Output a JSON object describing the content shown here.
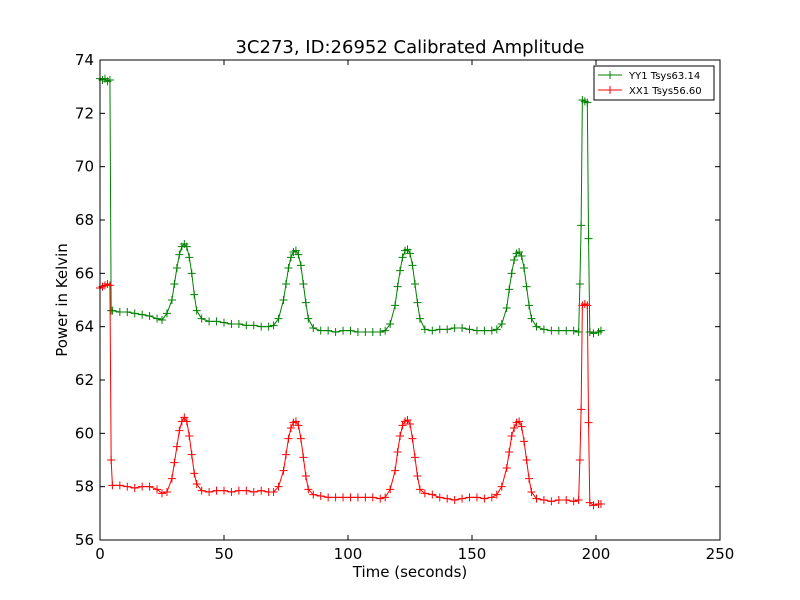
{
  "chart_data": {
    "type": "line",
    "title": "3C273, ID:26952 Calibrated Amplitude",
    "xlabel": "Time (seconds)",
    "ylabel": "Power in Kelvin",
    "xlim": [
      0,
      250
    ],
    "ylim": [
      56,
      74
    ],
    "xticks": [
      0,
      50,
      100,
      150,
      200,
      250
    ],
    "yticks": [
      56,
      58,
      60,
      62,
      64,
      66,
      68,
      70,
      72,
      74
    ],
    "grid": false,
    "legend_position": "top-right",
    "marker": "plus",
    "series": [
      {
        "name": "YY1 Tsys63.14",
        "color": "#008000",
        "points": [
          [
            0,
            73.3
          ],
          [
            1,
            73.25
          ],
          [
            2,
            73.3
          ],
          [
            3,
            73.2
          ],
          [
            4,
            73.25
          ],
          [
            4.5,
            64.6
          ],
          [
            5,
            64.6
          ],
          [
            8,
            64.55
          ],
          [
            11,
            64.55
          ],
          [
            14,
            64.5
          ],
          [
            17,
            64.45
          ],
          [
            20,
            64.4
          ],
          [
            23,
            64.3
          ],
          [
            25,
            64.25
          ],
          [
            27,
            64.5
          ],
          [
            29,
            65.0
          ],
          [
            30,
            65.6
          ],
          [
            31,
            66.2
          ],
          [
            32,
            66.7
          ],
          [
            33,
            67.0
          ],
          [
            34,
            67.1
          ],
          [
            35,
            67.0
          ],
          [
            36,
            66.6
          ],
          [
            37,
            66.0
          ],
          [
            38,
            65.2
          ],
          [
            39,
            64.6
          ],
          [
            41,
            64.3
          ],
          [
            44,
            64.2
          ],
          [
            47,
            64.2
          ],
          [
            50,
            64.15
          ],
          [
            53,
            64.1
          ],
          [
            56,
            64.1
          ],
          [
            59,
            64.05
          ],
          [
            62,
            64.05
          ],
          [
            65,
            64.0
          ],
          [
            68,
            64.0
          ],
          [
            70,
            64.05
          ],
          [
            72,
            64.3
          ],
          [
            74,
            65.0
          ],
          [
            75,
            65.6
          ],
          [
            76,
            66.2
          ],
          [
            77,
            66.6
          ],
          [
            78,
            66.8
          ],
          [
            79,
            66.85
          ],
          [
            80,
            66.7
          ],
          [
            81,
            66.3
          ],
          [
            82,
            65.6
          ],
          [
            83,
            64.9
          ],
          [
            84,
            64.3
          ],
          [
            86,
            63.95
          ],
          [
            89,
            63.85
          ],
          [
            92,
            63.85
          ],
          [
            95,
            63.8
          ],
          [
            98,
            63.85
          ],
          [
            101,
            63.85
          ],
          [
            104,
            63.8
          ],
          [
            107,
            63.8
          ],
          [
            110,
            63.8
          ],
          [
            113,
            63.8
          ],
          [
            115,
            63.85
          ],
          [
            117,
            64.1
          ],
          [
            119,
            64.8
          ],
          [
            120,
            65.5
          ],
          [
            121,
            66.1
          ],
          [
            122,
            66.6
          ],
          [
            123,
            66.85
          ],
          [
            124,
            66.9
          ],
          [
            125,
            66.75
          ],
          [
            126,
            66.3
          ],
          [
            127,
            65.6
          ],
          [
            128,
            64.9
          ],
          [
            129,
            64.3
          ],
          [
            131,
            63.9
          ],
          [
            134,
            63.85
          ],
          [
            137,
            63.9
          ],
          [
            140,
            63.9
          ],
          [
            143,
            63.95
          ],
          [
            146,
            63.95
          ],
          [
            149,
            63.9
          ],
          [
            152,
            63.85
          ],
          [
            155,
            63.85
          ],
          [
            158,
            63.85
          ],
          [
            160,
            63.9
          ],
          [
            162,
            64.1
          ],
          [
            164,
            64.7
          ],
          [
            165,
            65.4
          ],
          [
            166,
            66.0
          ],
          [
            167,
            66.5
          ],
          [
            168,
            66.75
          ],
          [
            169,
            66.8
          ],
          [
            170,
            66.65
          ],
          [
            171,
            66.2
          ],
          [
            172,
            65.5
          ],
          [
            173,
            64.8
          ],
          [
            174,
            64.3
          ],
          [
            176,
            64.0
          ],
          [
            179,
            63.9
          ],
          [
            182,
            63.85
          ],
          [
            185,
            63.85
          ],
          [
            188,
            63.85
          ],
          [
            191,
            63.85
          ],
          [
            193,
            63.8
          ],
          [
            193.5,
            65.6
          ],
          [
            194,
            67.8
          ],
          [
            194.5,
            72.5
          ],
          [
            195.5,
            72.45
          ],
          [
            196.5,
            72.4
          ],
          [
            197,
            67.3
          ],
          [
            197.5,
            63.8
          ],
          [
            199,
            63.75
          ],
          [
            201,
            63.8
          ],
          [
            202,
            63.85
          ]
        ]
      },
      {
        "name": "XX1 Tsys56.60",
        "color": "#ff0000",
        "points": [
          [
            0,
            65.45
          ],
          [
            1,
            65.5
          ],
          [
            2,
            65.55
          ],
          [
            3,
            65.6
          ],
          [
            4,
            65.55
          ],
          [
            4.5,
            59.0
          ],
          [
            5,
            58.05
          ],
          [
            8,
            58.05
          ],
          [
            11,
            58.0
          ],
          [
            14,
            57.95
          ],
          [
            17,
            58.0
          ],
          [
            20,
            58.0
          ],
          [
            23,
            57.9
          ],
          [
            25,
            57.75
          ],
          [
            27,
            57.8
          ],
          [
            29,
            58.3
          ],
          [
            30,
            58.9
          ],
          [
            31,
            59.5
          ],
          [
            32,
            60.1
          ],
          [
            33,
            60.45
          ],
          [
            34,
            60.6
          ],
          [
            35,
            60.45
          ],
          [
            36,
            59.9
          ],
          [
            37,
            59.2
          ],
          [
            38,
            58.5
          ],
          [
            39,
            58.1
          ],
          [
            41,
            57.85
          ],
          [
            44,
            57.8
          ],
          [
            47,
            57.85
          ],
          [
            50,
            57.85
          ],
          [
            53,
            57.8
          ],
          [
            56,
            57.85
          ],
          [
            59,
            57.85
          ],
          [
            62,
            57.8
          ],
          [
            65,
            57.85
          ],
          [
            68,
            57.8
          ],
          [
            70,
            57.8
          ],
          [
            72,
            58.0
          ],
          [
            74,
            58.6
          ],
          [
            75,
            59.2
          ],
          [
            76,
            59.8
          ],
          [
            77,
            60.2
          ],
          [
            78,
            60.4
          ],
          [
            79,
            60.45
          ],
          [
            80,
            60.3
          ],
          [
            81,
            59.8
          ],
          [
            82,
            59.1
          ],
          [
            83,
            58.4
          ],
          [
            84,
            57.9
          ],
          [
            86,
            57.7
          ],
          [
            89,
            57.65
          ],
          [
            92,
            57.6
          ],
          [
            95,
            57.6
          ],
          [
            98,
            57.6
          ],
          [
            101,
            57.6
          ],
          [
            104,
            57.6
          ],
          [
            107,
            57.6
          ],
          [
            110,
            57.6
          ],
          [
            113,
            57.55
          ],
          [
            115,
            57.6
          ],
          [
            117,
            57.9
          ],
          [
            119,
            58.6
          ],
          [
            120,
            59.3
          ],
          [
            121,
            59.9
          ],
          [
            122,
            60.3
          ],
          [
            123,
            60.45
          ],
          [
            124,
            60.5
          ],
          [
            125,
            60.35
          ],
          [
            126,
            59.8
          ],
          [
            127,
            59.1
          ],
          [
            128,
            58.4
          ],
          [
            129,
            57.9
          ],
          [
            131,
            57.75
          ],
          [
            134,
            57.7
          ],
          [
            137,
            57.6
          ],
          [
            140,
            57.55
          ],
          [
            143,
            57.5
          ],
          [
            146,
            57.55
          ],
          [
            149,
            57.6
          ],
          [
            152,
            57.6
          ],
          [
            155,
            57.55
          ],
          [
            158,
            57.6
          ],
          [
            160,
            57.7
          ],
          [
            162,
            58.0
          ],
          [
            164,
            58.7
          ],
          [
            165,
            59.3
          ],
          [
            166,
            59.9
          ],
          [
            167,
            60.2
          ],
          [
            168,
            60.4
          ],
          [
            169,
            60.45
          ],
          [
            170,
            60.25
          ],
          [
            171,
            59.7
          ],
          [
            172,
            59.0
          ],
          [
            173,
            58.3
          ],
          [
            174,
            57.8
          ],
          [
            176,
            57.55
          ],
          [
            179,
            57.5
          ],
          [
            182,
            57.45
          ],
          [
            185,
            57.5
          ],
          [
            188,
            57.5
          ],
          [
            191,
            57.45
          ],
          [
            193,
            57.5
          ],
          [
            193.5,
            59.0
          ],
          [
            194,
            60.9
          ],
          [
            194.5,
            64.8
          ],
          [
            195.5,
            64.85
          ],
          [
            196.5,
            64.8
          ],
          [
            197,
            60.4
          ],
          [
            197.5,
            57.4
          ],
          [
            199,
            57.3
          ],
          [
            201,
            57.35
          ],
          [
            202,
            57.35
          ]
        ]
      }
    ]
  }
}
